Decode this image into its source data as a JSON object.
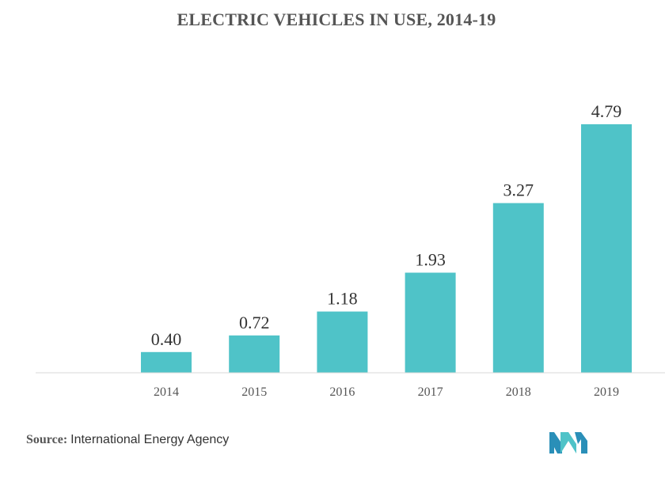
{
  "chart_data": {
    "type": "bar",
    "title": "ELECTRIC VEHICLES IN USE, 2014-19",
    "categories": [
      "2014",
      "2015",
      "2016",
      "2017",
      "2018",
      "2019"
    ],
    "values": [
      0.4,
      0.72,
      1.18,
      1.93,
      3.27,
      4.79
    ],
    "value_labels": [
      "0.40",
      "0.72",
      "1.18",
      "1.93",
      "3.27",
      "4.79"
    ],
    "xlabel": "",
    "ylabel": "",
    "ylim": [
      0,
      4.79
    ],
    "grid": false,
    "legend": "none",
    "bar_color": "#4fc3c8"
  },
  "source": {
    "label": "Source:",
    "text": "International Energy Agency"
  },
  "logo": {
    "icon": "mordor-intelligence-logo-icon",
    "colors": [
      "#2a8fb8",
      "#4fc3c8"
    ]
  }
}
